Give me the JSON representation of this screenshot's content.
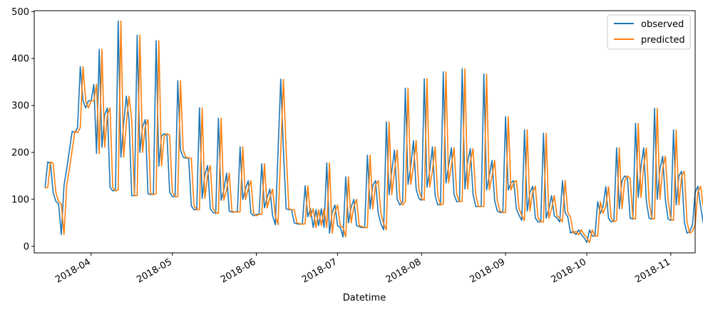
{
  "chart_data": {
    "type": "line",
    "title": "",
    "xlabel": "Datetime",
    "ylabel": "",
    "xlim": [
      "2018-03-11",
      "2018-11-10"
    ],
    "ylim": [
      -14,
      502
    ],
    "grid": false,
    "legend": {
      "position": "top-right",
      "entries": [
        "observed",
        "predicted"
      ]
    },
    "x_ticks": [
      "2018-04-01",
      "2018-05-01",
      "2018-06-01",
      "2018-07-01",
      "2018-08-01",
      "2018-09-01",
      "2018-10-01",
      "2018-11-01"
    ],
    "x_tick_labels": [
      "2018-04",
      "2018-05",
      "2018-06",
      "2018-07",
      "2018-08",
      "2018-09",
      "2018-10",
      "2018-11"
    ],
    "y_ticks": [
      0,
      100,
      200,
      300,
      400,
      500
    ],
    "y_tick_labels": [
      "0",
      "100",
      "200",
      "300",
      "400",
      "500"
    ],
    "start_date": "2018-03-15",
    "series": [
      {
        "name": "observed",
        "color": "#1f77b4",
        "values": [
          125,
          180,
          176,
          114,
          96,
          90,
          25,
          130,
          165,
          205,
          245,
          242,
          253,
          383,
          310,
          295,
          310,
          310,
          345,
          198,
          420,
          211,
          280,
          295,
          125,
          118,
          120,
          480,
          190,
          260,
          320,
          270,
          108,
          108,
          450,
          200,
          255,
          270,
          112,
          110,
          112,
          438,
          171,
          235,
          240,
          237,
          115,
          106,
          106,
          353,
          205,
          190,
          188,
          188,
          86,
          78,
          78,
          295,
          102,
          152,
          172,
          80,
          72,
          70,
          273,
          98,
          120,
          156,
          75,
          73,
          73,
          74,
          212,
          100,
          122,
          140,
          70,
          65,
          68,
          68,
          176,
          82,
          104,
          122,
          65,
          46,
          200,
          356,
          205,
          80,
          78,
          78,
          50,
          48,
          47,
          48,
          129,
          63,
          80,
          40,
          78,
          44,
          80,
          40,
          178,
          28,
          72,
          88,
          44,
          40,
          20,
          148,
          50,
          84,
          100,
          44,
          42,
          40,
          40,
          194,
          80,
          130,
          140,
          70,
          48,
          35,
          265,
          110,
          160,
          205,
          100,
          88,
          95,
          337,
          132,
          170,
          225,
          122,
          102,
          98,
          357,
          126,
          160,
          212,
          108,
          88,
          90,
          372,
          135,
          172,
          210,
          110,
          95,
          96,
          378,
          122,
          180,
          208,
          110,
          85,
          85,
          85,
          367,
          120,
          150,
          183,
          96,
          75,
          72,
          72,
          276,
          120,
          135,
          140,
          80,
          66,
          55,
          248,
          75,
          115,
          128,
          60,
          52,
          52,
          241,
          60,
          80,
          108,
          65,
          60,
          52,
          140,
          72,
          62,
          28,
          32,
          25,
          35,
          25,
          18,
          8,
          35,
          22,
          22,
          95,
          70,
          85,
          127,
          60,
          52,
          55,
          210,
          80,
          140,
          150,
          145,
          60,
          58,
          262,
          104,
          170,
          210,
          95,
          60,
          58,
          294,
          100,
          165,
          192,
          100,
          58,
          55,
          248,
          88,
          150,
          160,
          52,
          28,
          32,
          45,
          115,
          128,
          85,
          50
        ]
      },
      {
        "name": "predicted",
        "color": "#ff7f0e",
        "values": [
          125,
          125,
          180,
          176,
          114,
          96,
          90,
          25,
          130,
          165,
          205,
          245,
          242,
          253,
          383,
          310,
          295,
          310,
          310,
          345,
          198,
          420,
          211,
          280,
          295,
          125,
          118,
          120,
          480,
          190,
          260,
          320,
          270,
          108,
          108,
          450,
          200,
          255,
          270,
          112,
          110,
          112,
          438,
          171,
          235,
          240,
          237,
          115,
          106,
          106,
          353,
          205,
          190,
          188,
          188,
          86,
          78,
          78,
          295,
          102,
          152,
          172,
          80,
          72,
          70,
          273,
          98,
          120,
          156,
          75,
          73,
          73,
          74,
          212,
          100,
          122,
          140,
          70,
          65,
          68,
          68,
          176,
          82,
          104,
          122,
          65,
          46,
          200,
          356,
          205,
          80,
          78,
          78,
          50,
          48,
          47,
          48,
          129,
          63,
          80,
          40,
          78,
          44,
          80,
          40,
          178,
          28,
          72,
          88,
          44,
          40,
          20,
          148,
          50,
          84,
          100,
          44,
          42,
          40,
          40,
          194,
          80,
          130,
          140,
          70,
          48,
          35,
          265,
          110,
          160,
          205,
          100,
          88,
          95,
          337,
          132,
          170,
          225,
          122,
          102,
          98,
          357,
          126,
          160,
          212,
          108,
          88,
          90,
          372,
          135,
          172,
          210,
          110,
          95,
          96,
          378,
          122,
          180,
          208,
          110,
          85,
          85,
          85,
          367,
          120,
          150,
          183,
          96,
          75,
          72,
          72,
          276,
          120,
          135,
          140,
          80,
          66,
          55,
          248,
          75,
          115,
          128,
          60,
          52,
          52,
          241,
          60,
          80,
          108,
          65,
          60,
          52,
          140,
          72,
          62,
          28,
          32,
          25,
          35,
          25,
          18,
          8,
          35,
          22,
          22,
          95,
          70,
          85,
          127,
          60,
          52,
          55,
          210,
          80,
          140,
          150,
          145,
          60,
          58,
          262,
          104,
          170,
          210,
          95,
          60,
          58,
          294,
          100,
          165,
          192,
          100,
          58,
          55,
          248,
          88,
          150,
          160,
          52,
          28,
          32,
          45,
          115,
          128,
          85
        ]
      }
    ]
  }
}
